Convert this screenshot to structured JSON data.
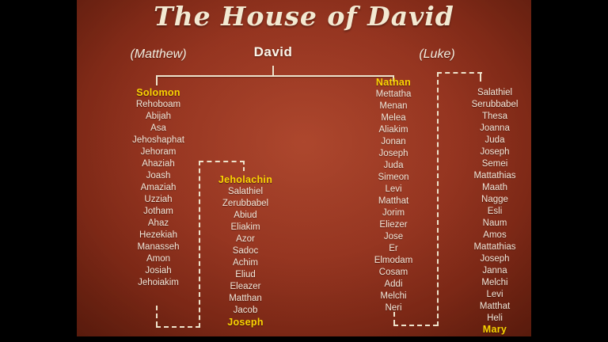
{
  "slide": {
    "title": "The House of David",
    "root_name": "David",
    "gospel_left": "(Matthew)",
    "gospel_right": "(Luke)"
  },
  "colors": {
    "background_center": "#a83f27",
    "background_edge": "#641e0e",
    "letterbox": "#000000",
    "name_text": "#f4e8da",
    "highlight_yellow": "#fbd502",
    "connector_line": "#eee3cc"
  },
  "matthew_royal_line": {
    "header": "Solomon",
    "names": [
      "Rehoboam",
      "Abijah",
      "Asa",
      "Jehoshaphat",
      "Jehoram",
      "Ahaziah",
      "Joash",
      "Amaziah",
      "Uzziah",
      "Jotham",
      "Ahaz",
      "Hezekiah",
      "Manasseh",
      "Amon",
      "Josiah",
      "Jehoiakim"
    ]
  },
  "matthew_exile_line": {
    "header": "Jeholachin",
    "names": [
      "Salathiel",
      "Zerubbabel",
      "Abiud",
      "Eliakim",
      "Azor",
      "Sadoc",
      "Achim",
      "Eliud",
      "Eleazer",
      "Matthan",
      "Jacob"
    ],
    "footer": "Joseph"
  },
  "luke_nathan_line": {
    "header": "Nathan",
    "names": [
      "Mettatha",
      "Menan",
      "Melea",
      "Aliakim",
      "Jonan",
      "Joseph",
      "Juda",
      "Simeon",
      "Levi",
      "Matthat",
      "Jorim",
      "Eliezer",
      "Jose",
      "Er",
      "Elmodam",
      "Cosam",
      "Addi",
      "Melchi",
      "Neri"
    ]
  },
  "luke_final_line": {
    "names": [
      "Salathiel",
      "Serubbabel",
      "Thesa",
      "Joanna",
      "Juda",
      "Joseph",
      "Semei",
      "Mattathias",
      "Maath",
      "Nagge",
      "Esli",
      "Naum",
      "Amos",
      "Mattathias",
      "Joseph",
      "Janna",
      "Melchi",
      "Levi",
      "Matthat",
      "Heli"
    ],
    "footer": "Mary"
  }
}
